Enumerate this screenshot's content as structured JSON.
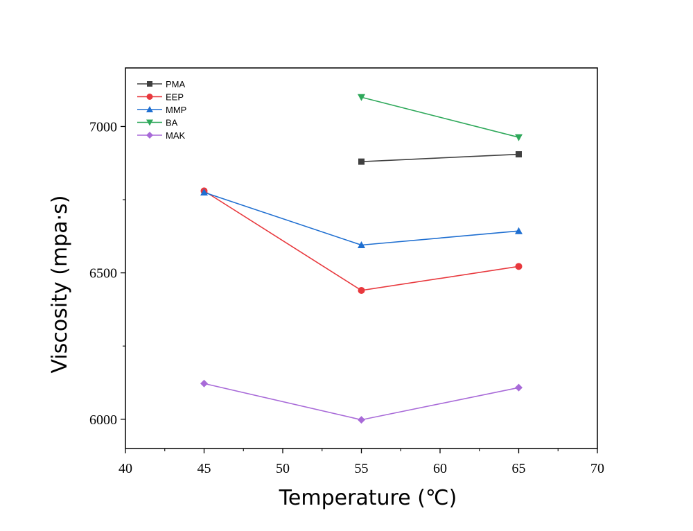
{
  "chart_data": {
    "type": "line",
    "xlabel": "Temperature (℃)",
    "ylabel": "Viscosity (mpa·s)",
    "xlim": [
      40,
      70
    ],
    "ylim": [
      5900,
      7200
    ],
    "x_ticks": [
      40,
      45,
      50,
      55,
      60,
      65,
      70
    ],
    "y_ticks": [
      6000,
      6500,
      7000
    ],
    "y_minor_ticks": [
      6250,
      6750
    ],
    "grid": false,
    "legend_position": "top-left",
    "series": [
      {
        "name": "PMA",
        "color": "#404040",
        "marker": "square",
        "points": [
          {
            "x": 55,
            "y": 6880
          },
          {
            "x": 65,
            "y": 6905
          }
        ]
      },
      {
        "name": "EEP",
        "color": "#e8383d",
        "marker": "circle",
        "points": [
          {
            "x": 45,
            "y": 6780
          },
          {
            "x": 55,
            "y": 6440
          },
          {
            "x": 65,
            "y": 6522
          }
        ]
      },
      {
        "name": "MMP",
        "color": "#1f6fd1",
        "marker": "triangle-up",
        "points": [
          {
            "x": 45,
            "y": 6775
          },
          {
            "x": 55,
            "y": 6595
          },
          {
            "x": 65,
            "y": 6643
          }
        ]
      },
      {
        "name": "BA",
        "color": "#2ea85a",
        "marker": "triangle-down",
        "points": [
          {
            "x": 55,
            "y": 7100
          },
          {
            "x": 65,
            "y": 6963
          }
        ]
      },
      {
        "name": "MAK",
        "color": "#a86ad8",
        "marker": "diamond",
        "points": [
          {
            "x": 45,
            "y": 6122
          },
          {
            "x": 55,
            "y": 5998
          },
          {
            "x": 65,
            "y": 6108
          }
        ]
      }
    ]
  }
}
